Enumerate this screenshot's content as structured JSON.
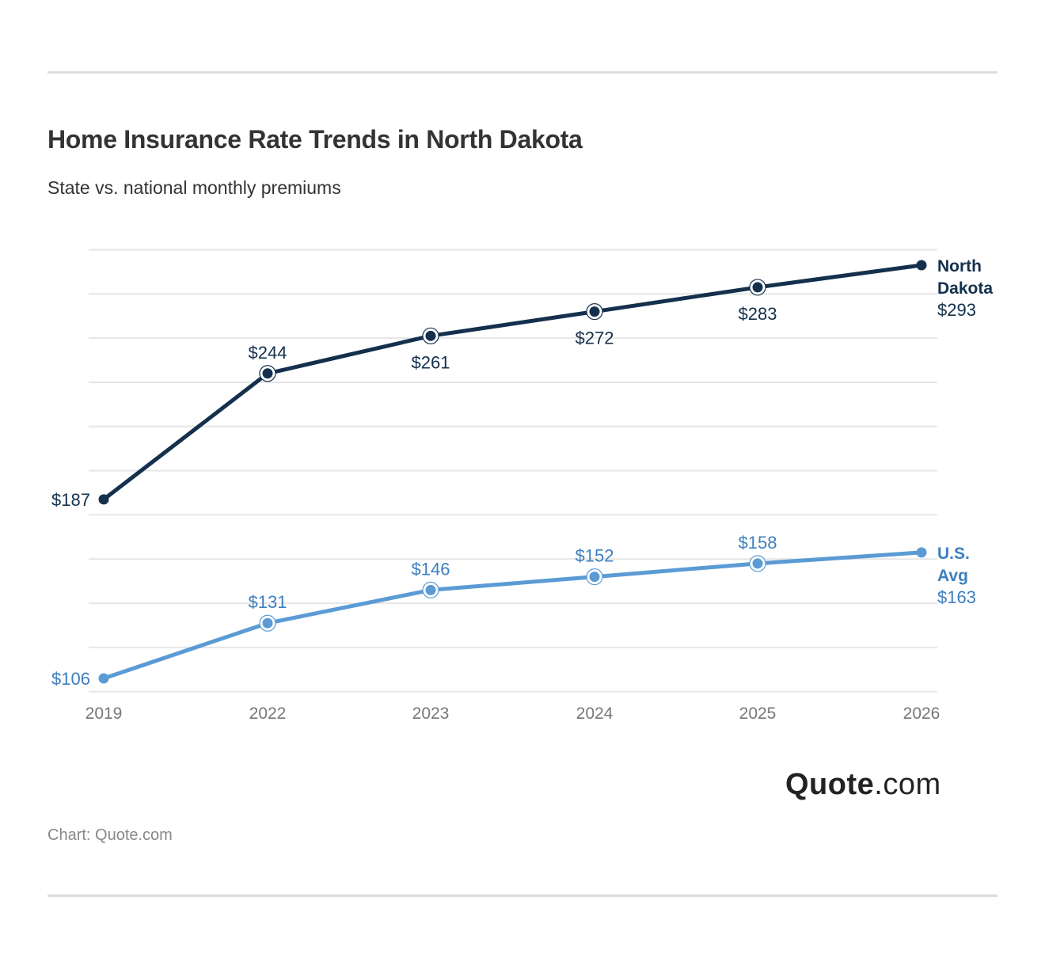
{
  "header": {
    "title": "Home Insurance Rate Trends in North Dakota",
    "subtitle": "State vs. national monthly premiums"
  },
  "footer": {
    "logo_bold": "Quote",
    "logo_rest": ".com",
    "source": "Chart: Quote.com"
  },
  "colors": {
    "north_dakota": "#14304d",
    "us_avg": "#5b9bd5",
    "us_avg_label": "#3d7fbf",
    "gridline": "#e6e6e6",
    "axis_text": "#777777"
  },
  "chart_data": {
    "type": "line",
    "title": "Home Insurance Rate Trends in North Dakota",
    "subtitle": "State vs. national monthly premiums",
    "xlabel": "",
    "ylabel": "",
    "categories": [
      "2019",
      "2022",
      "2023",
      "2024",
      "2025",
      "2026"
    ],
    "series": [
      {
        "name": "North Dakota",
        "label_lines": [
          "North",
          "Dakota"
        ],
        "values": [
          187,
          244,
          261,
          272,
          283,
          293
        ],
        "labels": [
          "$187",
          "$244",
          "$261",
          "$272",
          "$283",
          "$293"
        ]
      },
      {
        "name": "U.S. Avg",
        "label_lines": [
          "U.S.",
          "Avg"
        ],
        "values": [
          106,
          131,
          146,
          152,
          158,
          163
        ],
        "labels": [
          "$106",
          "$131",
          "$146",
          "$152",
          "$158",
          "$163"
        ]
      }
    ],
    "ylim": [
      100,
      300
    ],
    "grid": true,
    "grid_step": 20,
    "legend": "inline-right"
  }
}
